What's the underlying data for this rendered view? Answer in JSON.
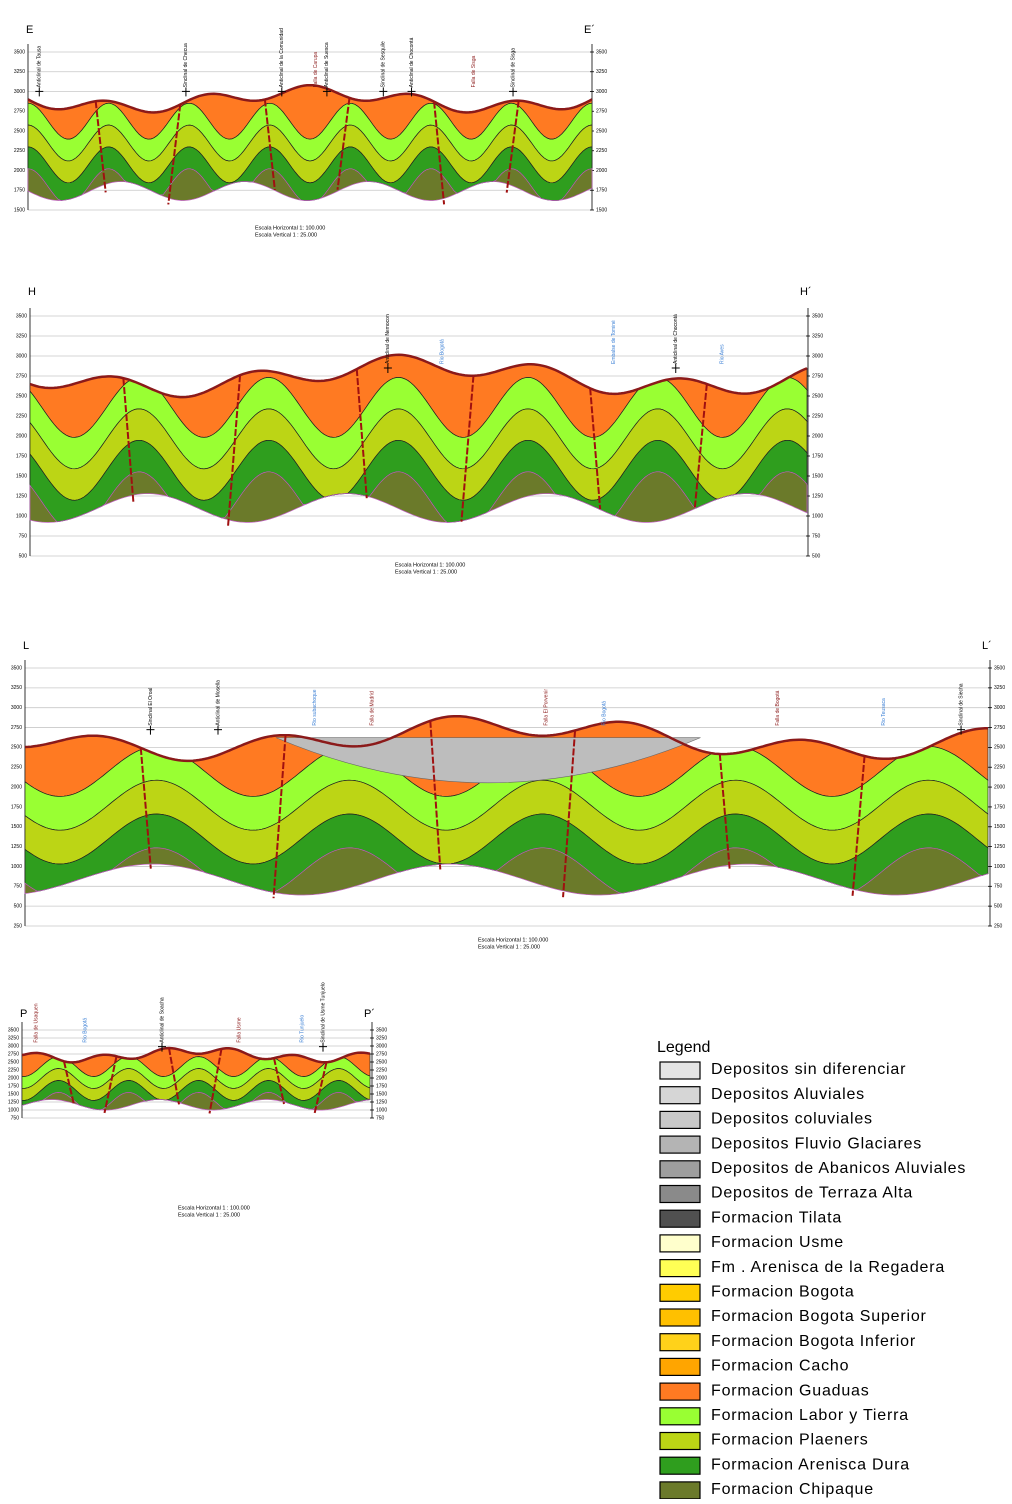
{
  "sections": [
    {
      "start": "E",
      "end": "E´",
      "elevation_ticks": [
        "3500",
        "3250",
        "3000",
        "2750",
        "2500",
        "2250",
        "2000",
        "1750",
        "1500"
      ],
      "scale": [
        "Escala Horizontal 1: 100.000",
        "Escala Vertical 1 : 25.000"
      ],
      "structures": [
        {
          "label": "Anticlinal de Tausa",
          "color": "#000000"
        },
        {
          "label": "Sinclinal de Checua",
          "color": "#000000"
        },
        {
          "label": "Anticlinal de la Comunidad",
          "color": "#000000"
        },
        {
          "label": "Falla de Carupa",
          "color": "#8b1a1a"
        },
        {
          "label": "Anticlinal de Suesca",
          "color": "#000000"
        },
        {
          "label": "Sinclinal de Sesquile",
          "color": "#000000"
        },
        {
          "label": "Anticlinal de Chocontá",
          "color": "#000000"
        },
        {
          "label": "Falla de Sisga",
          "color": "#8b1a1a"
        },
        {
          "label": "Sinclinal de Sisga",
          "color": "#000000"
        }
      ]
    },
    {
      "start": "H",
      "end": "H´",
      "elevation_ticks": [
        "3500",
        "3250",
        "3000",
        "2750",
        "2500",
        "2250",
        "2000",
        "1750",
        "1500",
        "1250",
        "1000",
        "750",
        "500"
      ],
      "scale": [
        "Escala Horizontal 1: 100.000",
        "Escala Vertical 1 : 25.000"
      ],
      "structures": [
        {
          "label": "Anticlinal de Nemocon",
          "color": "#000000"
        },
        {
          "label": "Rio Bogotá",
          "color": "#3a7fd5"
        },
        {
          "label": "Anticlinal de Chocontá",
          "color": "#000000"
        },
        {
          "label": "Embalse de Tominé",
          "color": "#3a7fd5"
        },
        {
          "label": "Rio Aves",
          "color": "#3a7fd5"
        }
      ]
    },
    {
      "start": "L",
      "end": "L´",
      "elevation_ticks": [
        "3500",
        "3250",
        "3000",
        "2750",
        "2500",
        "2250",
        "2000",
        "1750",
        "1500",
        "1250",
        "1000",
        "750",
        "500",
        "250"
      ],
      "scale": [
        "Escala Horizontal 1: 100.000",
        "Escala Vertical 1 : 25.000"
      ],
      "structures": [
        {
          "label": "Sinclinal El Oroal",
          "color": "#000000"
        },
        {
          "label": "Anticlinal de Mosella",
          "color": "#000000"
        },
        {
          "label": "Rio subachoque",
          "color": "#3a7fd5"
        },
        {
          "label": "Falla de Madrid",
          "color": "#8b1a1a"
        },
        {
          "label": "Falla El Porvenir",
          "color": "#8b1a1a"
        },
        {
          "label": "Rio Bogotá",
          "color": "#3a7fd5"
        },
        {
          "label": "Falla de Bogotá",
          "color": "#8b1a1a"
        },
        {
          "label": "Rio Teusaca",
          "color": "#3a7fd5"
        },
        {
          "label": "Sinclinal de Siecha",
          "color": "#000000"
        }
      ]
    },
    {
      "start": "P",
      "end": "P´",
      "elevation_ticks": [
        "3500",
        "3250",
        "3000",
        "2750",
        "2500",
        "2250",
        "2000",
        "1750",
        "1500",
        "1250",
        "1000",
        "750"
      ],
      "scale": [
        "Escala Horizontal 1 : 100.000",
        "Escala Vertical 1 : 25.000"
      ],
      "structures": [
        {
          "label": "Falla de Usaquen",
          "color": "#8b1a1a"
        },
        {
          "label": "Rio Bogotá",
          "color": "#3a7fd5"
        },
        {
          "label": "Anticlinal de Soacha",
          "color": "#000000"
        },
        {
          "label": "Falla Usme",
          "color": "#8b1a1a"
        },
        {
          "label": "Rio Tunjuelo",
          "color": "#3a7fd5"
        },
        {
          "label": "Sinclinal de Usme Tunjuelo",
          "color": "#000000"
        }
      ]
    }
  ],
  "legend": {
    "title": "Legend",
    "items": [
      {
        "label": "Depositos sin diferenciar",
        "color": "#e4e4e4"
      },
      {
        "label": "Depositos Aluviales",
        "color": "#d6d6d6"
      },
      {
        "label": "Depositos coluviales",
        "color": "#c8c8c8"
      },
      {
        "label": "Depositos Fluvio Glaciares",
        "color": "#b4b4b4"
      },
      {
        "label": "Depositos de Abanicos Aluviales",
        "color": "#9e9e9e"
      },
      {
        "label": "Depositos de Terraza Alta",
        "color": "#8a8a8a"
      },
      {
        "label": "Formacion Tilata",
        "color": "#505050"
      },
      {
        "label": "Formacion Usme",
        "color": "#ffffcc"
      },
      {
        "label": "Fm . Arenisca de la Regadera",
        "color": "#ffff55"
      },
      {
        "label": "Formacion Bogota",
        "color": "#ffcc00"
      },
      {
        "label": "Formacion Bogota Superior",
        "color": "#ffc000"
      },
      {
        "label": "Formacion Bogota Inferior",
        "color": "#ffd21a"
      },
      {
        "label": "Formacion Cacho",
        "color": "#ffa500"
      },
      {
        "label": "Formacion Guaduas",
        "color": "#ff7a22"
      },
      {
        "label": "Formacion Labor y Tierra",
        "color": "#99ff33"
      },
      {
        "label": "Formacion Plaeners",
        "color": "#bcd515"
      },
      {
        "label": "Formacion Arenisca Dura",
        "color": "#2f9e1e"
      },
      {
        "label": "Formacion Chipaque",
        "color": "#6b7a2a"
      }
    ]
  }
}
